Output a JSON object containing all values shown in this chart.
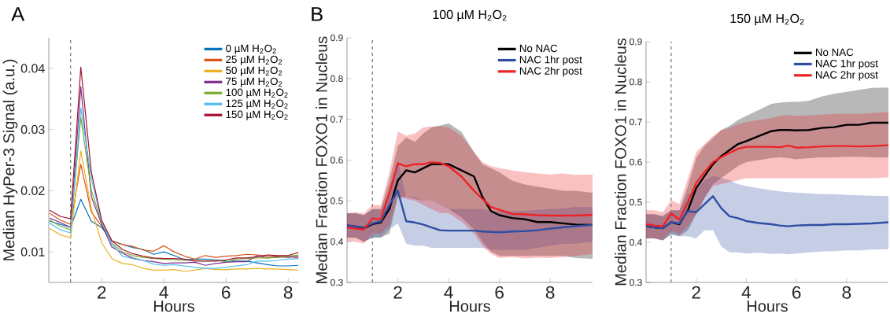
{
  "chart_data": [
    {
      "type": "line",
      "xlabel": "Hours",
      "ylabel": "Median HyPer-3 Signal (a.u.)",
      "annotations": [
        "A"
      ],
      "x": [
        0.33,
        0.67,
        1,
        1.33,
        1.67,
        2,
        2.33,
        2.67,
        3,
        3.33,
        3.67,
        4,
        4.33,
        4.67,
        5,
        5.33,
        5.67,
        6,
        6.33,
        6.67,
        7,
        7.33,
        7.67,
        8,
        8.33
      ],
      "xlim": [
        0.3,
        8.35
      ],
      "ylim": [
        0.005,
        0.045
      ],
      "xticks": [
        2,
        4,
        6,
        8
      ],
      "yticks": [
        0.01,
        0.02,
        0.03,
        0.04
      ],
      "legend": "top right",
      "ref_lines": [
        {
          "axis": "x",
          "value": 1,
          "color": "#808080",
          "line_style": "dashed"
        }
      ],
      "series": [
        {
          "name": "0 µM H$_{2}$O$_{2}$",
          "color": "#0072bd",
          "values": [
            0.015,
            0.0145,
            0.014,
            0.0186,
            0.015,
            0.014,
            0.0118,
            0.0112,
            0.0107,
            0.0104,
            0.0096,
            0.01,
            0.0094,
            0.0087,
            0.0088,
            0.0088,
            0.0087,
            0.0085,
            0.0085,
            0.0085,
            0.0082,
            0.0079,
            0.0077,
            0.0077,
            0.0078
          ]
        },
        {
          "name": "25 µM H$_{2}$O$_{2}$",
          "color": "#d95319",
          "values": [
            0.0163,
            0.0152,
            0.0145,
            0.0243,
            0.0165,
            0.0142,
            0.0118,
            0.0112,
            0.0109,
            0.0103,
            0.0101,
            0.011,
            0.01,
            0.0093,
            0.0088,
            0.0094,
            0.0091,
            0.0093,
            0.0094,
            0.0096,
            0.0095,
            0.0093,
            0.0093,
            0.0093,
            0.009
          ]
        },
        {
          "name": "50 µM H$_{2}$O$_{2}$",
          "color": "#edb120",
          "values": [
            0.0138,
            0.0128,
            0.0123,
            0.0265,
            0.017,
            0.0115,
            0.0089,
            0.0081,
            0.0079,
            0.0073,
            0.007,
            0.007,
            0.0071,
            0.0068,
            0.007,
            0.0073,
            0.0071,
            0.0071,
            0.0072,
            0.0072,
            0.0073,
            0.0072,
            0.0072,
            0.0071,
            0.007
          ]
        },
        {
          "name": "75 µM H$_{2}$O$_{2}$",
          "color": "#7e2f8e",
          "values": [
            0.0155,
            0.0148,
            0.014,
            0.037,
            0.019,
            0.0145,
            0.0108,
            0.0098,
            0.009,
            0.0086,
            0.0084,
            0.0081,
            0.0082,
            0.0082,
            0.0083,
            0.0078,
            0.0081,
            0.0083,
            0.0084,
            0.0084,
            0.0094,
            0.009,
            0.0092,
            0.0091,
            0.0093
          ]
        },
        {
          "name": "100 µM H$_{2}$O$_{2}$",
          "color": "#77ac30",
          "values": [
            0.0152,
            0.0142,
            0.0136,
            0.032,
            0.02,
            0.0148,
            0.0114,
            0.01,
            0.0094,
            0.0091,
            0.0089,
            0.0088,
            0.0087,
            0.0086,
            0.0086,
            0.0085,
            0.0086,
            0.0084,
            0.0088,
            0.0089,
            0.009,
            0.009,
            0.0091,
            0.0093,
            0.0095
          ]
        },
        {
          "name": "125 µM H$_{2}$O$_{2}$",
          "color": "#4dbeee",
          "values": [
            0.0147,
            0.0136,
            0.0131,
            0.0335,
            0.022,
            0.015,
            0.0113,
            0.0093,
            0.0089,
            0.0086,
            0.008,
            0.0078,
            0.0079,
            0.0077,
            0.0075,
            0.0073,
            0.0073,
            0.0075,
            0.0077,
            0.0079,
            0.0085,
            0.0085,
            0.0086,
            0.0088,
            0.0089
          ]
        },
        {
          "name": "150 µM H$_{2}$O$_{2}$",
          "color": "#a2142f",
          "values": [
            0.0168,
            0.0158,
            0.0154,
            0.0402,
            0.023,
            0.0152,
            0.0118,
            0.0104,
            0.0097,
            0.0093,
            0.009,
            0.0089,
            0.0089,
            0.0088,
            0.0085,
            0.0085,
            0.0085,
            0.0087,
            0.009,
            0.009,
            0.0092,
            0.0095,
            0.0094,
            0.0094,
            0.0099
          ]
        }
      ]
    },
    {
      "type": "line",
      "title": "100 µM H$_{2}$O$_{2}$",
      "xlabel": "Hours",
      "ylabel": "Median Fraction FOXO1 in Nucleus",
      "annotations": [
        "B"
      ],
      "x": [
        0,
        0.33,
        0.67,
        1,
        1.33,
        1.67,
        2,
        2.33,
        2.67,
        3,
        3.33,
        3.67,
        4,
        4.5,
        5,
        5.33,
        5.67,
        6,
        6.5,
        7,
        7.5,
        8,
        8.5,
        9,
        9.67
      ],
      "xlim": [
        0,
        9.67
      ],
      "ylim": [
        0.3,
        0.9
      ],
      "xticks": [
        2,
        4,
        6,
        8
      ],
      "yticks": [
        0.3,
        0.4,
        0.5,
        0.6,
        0.7,
        0.8,
        0.9
      ],
      "legend": "top right",
      "ref_lines": [
        {
          "axis": "x",
          "value": 1,
          "color": "#808080",
          "line_style": "dashed"
        }
      ],
      "series": [
        {
          "name": "No NAC",
          "color": "#000000",
          "values": [
            0.44,
            0.437,
            0.433,
            0.443,
            0.447,
            0.48,
            0.55,
            0.575,
            0.57,
            0.58,
            0.59,
            0.59,
            0.59,
            0.575,
            0.56,
            0.51,
            0.475,
            0.465,
            0.458,
            0.455,
            0.448,
            0.448,
            0.445,
            0.442,
            0.441
          ],
          "lower": [
            0.41,
            0.41,
            0.4,
            0.41,
            0.41,
            0.42,
            0.51,
            0.51,
            0.505,
            0.5,
            0.5,
            0.49,
            0.48,
            0.46,
            0.43,
            0.4,
            0.375,
            0.365,
            0.365,
            0.365,
            0.365,
            0.365,
            0.365,
            0.36,
            0.358
          ],
          "upper": [
            0.47,
            0.47,
            0.465,
            0.48,
            0.48,
            0.55,
            0.635,
            0.655,
            0.645,
            0.665,
            0.68,
            0.685,
            0.69,
            0.67,
            0.62,
            0.59,
            0.58,
            0.57,
            0.55,
            0.54,
            0.535,
            0.53,
            0.525,
            0.525,
            0.52
          ]
        },
        {
          "name": "NAC 1hr post",
          "color": "#2f4ea3",
          "values": [
            0.44,
            0.437,
            0.435,
            0.445,
            0.45,
            0.49,
            0.525,
            0.45,
            0.447,
            0.442,
            0.435,
            0.428,
            0.427,
            0.427,
            0.427,
            0.425,
            0.424,
            0.423,
            0.425,
            0.426,
            0.428,
            0.432,
            0.435,
            0.438,
            0.441
          ],
          "lower": [
            0.41,
            0.41,
            0.4,
            0.41,
            0.41,
            0.43,
            0.445,
            0.395,
            0.39,
            0.39,
            0.385,
            0.385,
            0.385,
            0.385,
            0.385,
            0.385,
            0.38,
            0.38,
            0.38,
            0.38,
            0.385,
            0.39,
            0.395,
            0.395,
            0.4
          ],
          "upper": [
            0.47,
            0.47,
            0.465,
            0.48,
            0.48,
            0.52,
            0.6,
            0.51,
            0.51,
            0.5,
            0.5,
            0.49,
            0.48,
            0.48,
            0.48,
            0.48,
            0.475,
            0.475,
            0.475,
            0.475,
            0.478,
            0.48,
            0.482,
            0.485,
            0.485
          ]
        },
        {
          "name": "NAC 2hr post",
          "color": "#ee2227",
          "values": [
            0.435,
            0.432,
            0.43,
            0.457,
            0.455,
            0.52,
            0.592,
            0.585,
            0.59,
            0.59,
            0.595,
            0.593,
            0.585,
            0.56,
            0.525,
            0.505,
            0.485,
            0.478,
            0.468,
            0.467,
            0.465,
            0.464,
            0.464,
            0.464,
            0.466
          ],
          "lower": [
            0.4,
            0.4,
            0.395,
            0.42,
            0.42,
            0.44,
            0.51,
            0.505,
            0.5,
            0.49,
            0.48,
            0.47,
            0.47,
            0.45,
            0.42,
            0.39,
            0.37,
            0.36,
            0.362,
            0.359,
            0.361,
            0.36,
            0.362,
            0.365,
            0.37
          ],
          "upper": [
            0.47,
            0.472,
            0.47,
            0.49,
            0.49,
            0.57,
            0.67,
            0.66,
            0.665,
            0.68,
            0.683,
            0.683,
            0.68,
            0.66,
            0.62,
            0.595,
            0.585,
            0.58,
            0.575,
            0.57,
            0.567,
            0.565,
            0.567,
            0.564,
            0.565
          ]
        }
      ]
    },
    {
      "type": "line",
      "title": "150 µM H$_{2}$O$_{2}$",
      "xlabel": "Hours",
      "ylabel": "Median Fraction FOXO1 in Nucleus",
      "x": [
        0,
        0.33,
        0.67,
        1,
        1.33,
        1.67,
        2,
        2.33,
        2.67,
        3,
        3.33,
        3.67,
        4,
        4.5,
        5,
        5.33,
        5.67,
        6,
        6.5,
        7,
        7.5,
        8,
        8.5,
        9,
        9.67
      ],
      "xlim": [
        0,
        9.67
      ],
      "ylim": [
        0.3,
        0.9
      ],
      "xticks": [
        2,
        4,
        6,
        8
      ],
      "yticks": [
        0.3,
        0.4,
        0.5,
        0.6,
        0.7,
        0.8,
        0.9
      ],
      "legend": "top right",
      "ref_lines": [
        {
          "axis": "x",
          "value": 1,
          "color": "#808080",
          "line_style": "dashed"
        }
      ],
      "series": [
        {
          "name": "No NAC",
          "color": "#000000",
          "values": [
            0.44,
            0.437,
            0.435,
            0.45,
            0.445,
            0.48,
            0.535,
            0.565,
            0.595,
            0.615,
            0.63,
            0.645,
            0.652,
            0.665,
            0.677,
            0.68,
            0.68,
            0.679,
            0.68,
            0.685,
            0.687,
            0.693,
            0.693,
            0.698,
            0.698
          ],
          "lower": [
            0.41,
            0.41,
            0.405,
            0.42,
            0.415,
            0.43,
            0.47,
            0.51,
            0.545,
            0.56,
            0.575,
            0.59,
            0.6,
            0.605,
            0.61,
            0.612,
            0.61,
            0.607,
            0.61,
            0.612,
            0.612,
            0.613,
            0.613,
            0.612,
            0.612
          ],
          "upper": [
            0.47,
            0.47,
            0.465,
            0.48,
            0.48,
            0.54,
            0.61,
            0.64,
            0.66,
            0.68,
            0.69,
            0.705,
            0.715,
            0.73,
            0.745,
            0.748,
            0.75,
            0.75,
            0.753,
            0.763,
            0.77,
            0.775,
            0.78,
            0.785,
            0.786
          ]
        },
        {
          "name": "NAC 1hr post",
          "color": "#2f4ea3",
          "values": [
            0.44,
            0.437,
            0.435,
            0.45,
            0.447,
            0.478,
            0.475,
            0.495,
            0.515,
            0.485,
            0.465,
            0.46,
            0.453,
            0.448,
            0.445,
            0.442,
            0.44,
            0.442,
            0.443,
            0.443,
            0.445,
            0.445,
            0.446,
            0.447,
            0.45
          ],
          "lower": [
            0.41,
            0.41,
            0.405,
            0.42,
            0.415,
            0.415,
            0.41,
            0.43,
            0.43,
            0.39,
            0.375,
            0.375,
            0.372,
            0.374,
            0.371,
            0.372,
            0.37,
            0.372,
            0.375,
            0.377,
            0.378,
            0.38,
            0.38,
            0.382,
            0.383
          ],
          "upper": [
            0.47,
            0.47,
            0.465,
            0.48,
            0.48,
            0.52,
            0.53,
            0.555,
            0.565,
            0.56,
            0.555,
            0.545,
            0.54,
            0.535,
            0.53,
            0.527,
            0.525,
            0.524,
            0.522,
            0.52,
            0.52,
            0.518,
            0.517,
            0.516,
            0.515
          ]
        },
        {
          "name": "NAC 2hr post",
          "color": "#ee2227",
          "values": [
            0.445,
            0.442,
            0.44,
            0.472,
            0.457,
            0.5,
            0.548,
            0.575,
            0.6,
            0.612,
            0.623,
            0.633,
            0.638,
            0.638,
            0.638,
            0.637,
            0.641,
            0.636,
            0.637,
            0.639,
            0.64,
            0.64,
            0.639,
            0.64,
            0.642
          ],
          "lower": [
            0.41,
            0.41,
            0.405,
            0.43,
            0.42,
            0.44,
            0.47,
            0.51,
            0.54,
            0.545,
            0.55,
            0.555,
            0.56,
            0.56,
            0.56,
            0.56,
            0.56,
            0.56,
            0.56,
            0.56,
            0.56,
            0.56,
            0.56,
            0.56,
            0.562
          ],
          "upper": [
            0.48,
            0.48,
            0.475,
            0.505,
            0.495,
            0.56,
            0.625,
            0.645,
            0.665,
            0.68,
            0.685,
            0.695,
            0.7,
            0.705,
            0.71,
            0.715,
            0.717,
            0.715,
            0.716,
            0.718,
            0.72,
            0.72,
            0.72,
            0.722,
            0.725
          ]
        }
      ]
    }
  ]
}
